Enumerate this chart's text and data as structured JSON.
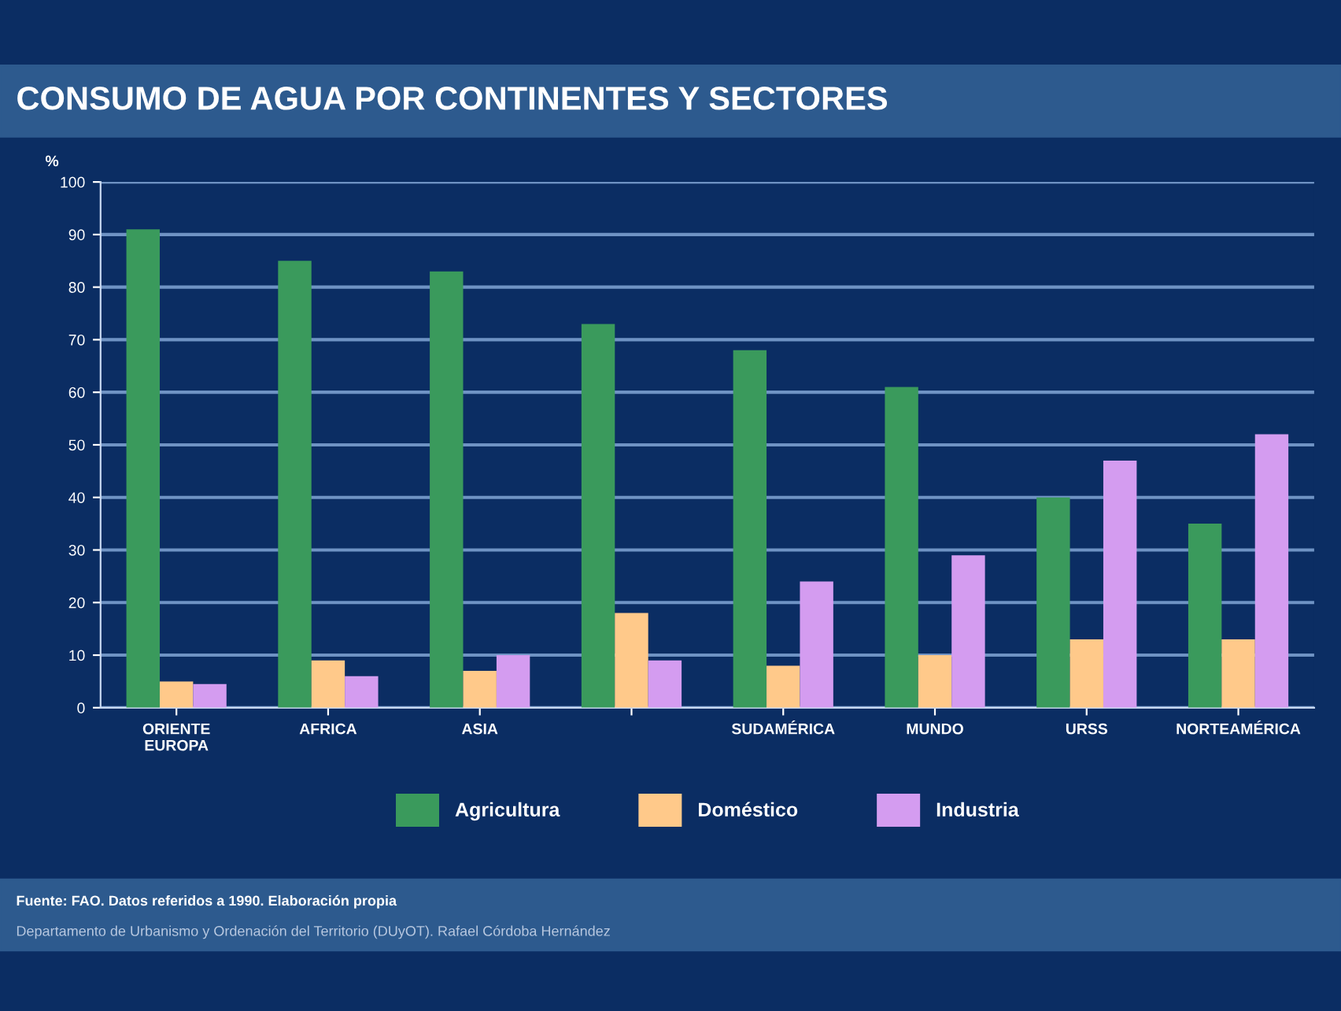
{
  "chart_data": {
    "type": "bar",
    "title": "CONSUMO DE AGUA POR CONTINENTES Y SECTORES",
    "ylabel": "%",
    "categories": [
      "ORIENTE\nEUROPA",
      "AFRICA",
      "ASIA",
      null,
      "SUDAMÉRICA",
      "MUNDO",
      "URSS",
      "NORTEAMÉRICA"
    ],
    "series": [
      {
        "name": "Agricultura",
        "color": "#3a9a5c",
        "values": [
          91,
          85,
          83,
          73,
          68,
          61,
          40,
          35
        ]
      },
      {
        "name": "Doméstico",
        "color": "#ffc98a",
        "values": [
          5,
          9,
          7,
          18,
          8,
          10,
          13,
          13
        ]
      },
      {
        "name": "Industria",
        "color": "#d49cf0",
        "values": [
          4.5,
          6,
          10,
          9,
          24,
          29,
          47,
          52
        ]
      }
    ],
    "ylim": [
      0,
      100
    ],
    "yticks": [
      0,
      10,
      20,
      30,
      40,
      50,
      60,
      70,
      80,
      90,
      100
    ],
    "grid": "y",
    "legend": "bottom",
    "annotations": [
      "Fuente: FAO. Datos referidos a 1990. Elaboración propia",
      "Departamento de Urbanismo y Ordenación del Territorio (DUyOT). Rafael Córdoba Hernández"
    ]
  }
}
